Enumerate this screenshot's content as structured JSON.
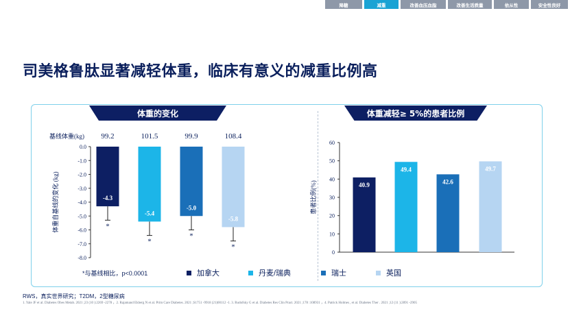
{
  "tabs": [
    {
      "label": "降糖",
      "width": 54,
      "active": false
    },
    {
      "label": "减重",
      "width": 50,
      "active": true
    },
    {
      "label": "改善血压血脂",
      "width": 66,
      "active": false
    },
    {
      "label": "改善生活质量",
      "width": 64,
      "active": false
    },
    {
      "label": "依从性",
      "width": 51,
      "active": false
    },
    {
      "label": "安全性良好",
      "width": 54,
      "active": false
    }
  ],
  "title": "司美格鲁肽显著减轻体重，临床有意义的减重比例高",
  "left_panel": {
    "banner": "体重的变化"
  },
  "right_panel": {
    "banner": "体重减轻≥ 5%的患者比例"
  },
  "legend": {
    "note": "*与基线相比，p<0.0001",
    "items": [
      {
        "label": "加拿大",
        "color": "#0d1f63"
      },
      {
        "label": "丹麦/瑞典",
        "color": "#1cb5e8"
      },
      {
        "label": "瑞士",
        "color": "#1a6fb8"
      },
      {
        "label": "英国",
        "color": "#b6d5f2"
      }
    ]
  },
  "footer": {
    "main": "RWS，真实世界研究；T2DM，2型糖尿病",
    "refs": "1. Yale JF et al. Diabetes Obes Metab. 2021 ;23 (10 ):2269 -2278 ，2. Rajamand Ekberg N et al. Prim Care Diabetes. 2021 ;S1751 -9918 (21)00112 -1. 3. Rudofsky G et al. Diabetes Res Clin Pract. 2021 ;178 :108931 ，4. Patrick Holmes , et al. Diabetes Ther . 2021 ;12 (11 ):2891 -2905"
  },
  "chart_data": [
    {
      "type": "bar",
      "baseline_label": "基线体重(kg)",
      "baseline_values": [
        "99.2",
        "101.5",
        "99.9",
        "108.4"
      ],
      "categories": [
        "加拿大",
        "丹麦/瑞典",
        "瑞士",
        "英国"
      ],
      "values": [
        -4.3,
        -5.4,
        -5.0,
        -5.8
      ],
      "labels": [
        "-4.3",
        "-5.4",
        "-5.0",
        "-5.8"
      ],
      "errors": [
        1.0,
        1.0,
        1.0,
        1.0
      ],
      "significance": [
        "*",
        "*",
        "*",
        "*"
      ],
      "colors": [
        "#0d1f63",
        "#1cb5e8",
        "#1a6fb8",
        "#b6d5f2"
      ],
      "ylabel": "体重自基线的变化 (kg)",
      "ylim": [
        -8.0,
        0.0
      ],
      "ticks": [
        "0.0",
        "-1.0",
        "-2.0",
        "-3.0",
        "-4.0",
        "-5.0",
        "-6.0",
        "-7.0",
        "-8.0"
      ],
      "tick_values": [
        0,
        -1,
        -2,
        -3,
        -4,
        -5,
        -6,
        -7,
        -8
      ]
    },
    {
      "type": "bar",
      "categories": [
        "加拿大",
        "丹麦/瑞典",
        "瑞士",
        "英国"
      ],
      "values": [
        40.9,
        49.4,
        42.6,
        49.7
      ],
      "labels": [
        "40.9",
        "49.4",
        "42.6",
        "49.7"
      ],
      "colors": [
        "#0d1f63",
        "#1cb5e8",
        "#1a6fb8",
        "#b6d5f2"
      ],
      "ylabel": "患者比例(%)",
      "ylim": [
        0,
        60
      ],
      "ticks": [
        "0",
        "10",
        "20",
        "30",
        "40",
        "50",
        "60"
      ],
      "tick_values": [
        0,
        10,
        20,
        30,
        40,
        50,
        60
      ]
    }
  ]
}
